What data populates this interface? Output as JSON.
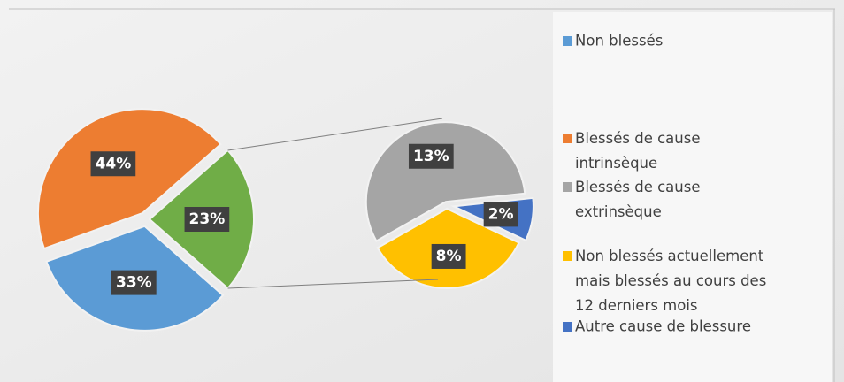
{
  "chart_data": {
    "type": "pie-of-pie",
    "categories": [
      "Non blessés",
      "Blessés de cause intrinsèque",
      "Blessés de cause extrinsèque",
      "Non blessés actuellement mais blessés au cours des 12 derniers mois",
      "Autre cause de blessure"
    ],
    "values": [
      33,
      44,
      13,
      8,
      2
    ],
    "value_labels": [
      "33%",
      "44%",
      "13%",
      "8%",
      "2%"
    ],
    "colors": [
      "#5b9bd5",
      "#ed7d31",
      "#a5a5a5",
      "#ffc000",
      "#4472c4"
    ],
    "other_value": 23,
    "other_value_label": "23%",
    "other_color": "#70ad47",
    "secondary_count": 3
  }
}
